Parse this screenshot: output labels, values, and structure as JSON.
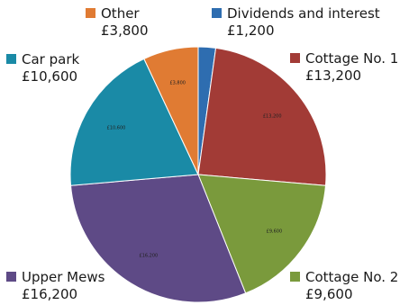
{
  "chart_data": {
    "type": "pie",
    "slices": [
      {
        "name": "Dividends and interest",
        "value": 1200,
        "label": "£1,200",
        "color": "#2E6DB0",
        "slice_label": ""
      },
      {
        "name": "Cottage No. 1",
        "value": 13200,
        "label": "£13,200",
        "color": "#A23B36",
        "slice_label": "£13,200"
      },
      {
        "name": "Cottage No. 2",
        "value": 9600,
        "label": "£9,600",
        "color": "#7A9A3C",
        "slice_label": "£9,600"
      },
      {
        "name": "Upper Mews",
        "value": 16200,
        "label": "£16,200",
        "color": "#5E4A86",
        "slice_label": "£16,200"
      },
      {
        "name": "Car park",
        "value": 10600,
        "label": "£10,600",
        "color": "#1A8AA6",
        "slice_label": "£10,600"
      },
      {
        "name": "Other",
        "value": 3800,
        "label": "£3,800",
        "color": "#E07B33",
        "slice_label": "£3,800"
      }
    ]
  }
}
